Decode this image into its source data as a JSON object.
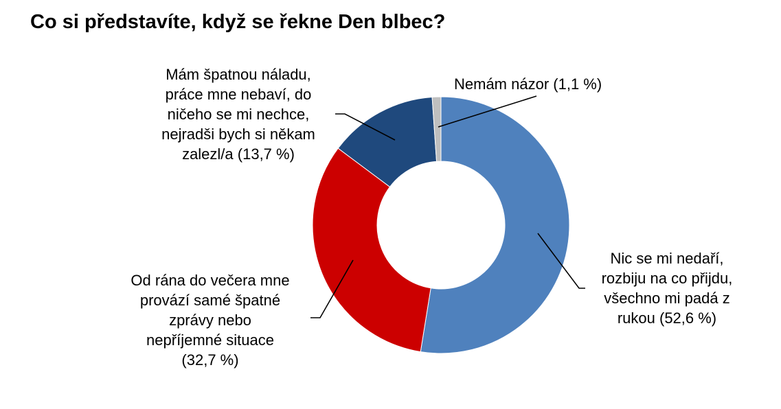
{
  "title": "Co si představíte, když se řekne Den blbec?",
  "chart_data": {
    "type": "pie",
    "variant": "donut",
    "title": "Co si představíte, když se řekne Den blbec?",
    "unit": "%",
    "slices": [
      {
        "label": "Nic se mi nedaří, rozbiju na co přijdu, všechno mi padá z rukou",
        "value": 52.6,
        "value_label": "(52,6 %)",
        "color": "#4f81bd",
        "label_lines": [
          "Nic se mi nedaří,",
          "rozbiju na co přijdu,",
          "všechno mi padá z",
          "rukou (52,6 %)"
        ]
      },
      {
        "label": "Od rána do večera mne provází samé špatné zprávy nebo nepříjemné situace",
        "value": 32.7,
        "value_label": "(32,7 %)",
        "color": "#cc0000",
        "label_lines": [
          "Od rána do večera mne",
          "provází samé špatné",
          "zprávy nebo",
          "nepříjemné situace",
          "(32,7 %)"
        ]
      },
      {
        "label": "Mám špatnou náladu, práce mne nebaví, do ničeho se mi nechce, nejradši bych si někam zalezl/a",
        "value": 13.7,
        "value_label": "(13,7 %)",
        "color": "#1f497d",
        "label_lines": [
          "Mám špatnou náladu,",
          "práce mne nebaví, do",
          "ničeho se mi nechce,",
          "nejradši bych si někam",
          "zalezl/a (13,7 %)"
        ]
      },
      {
        "label": "Nemám názor",
        "value": 1.1,
        "value_label": "(1,1 %)",
        "color": "#bfbfbf",
        "label_lines": [
          "Nemám názor (1,1 %)"
        ]
      }
    ],
    "start_angle_deg": 0,
    "direction": "clockwise",
    "legend": "none",
    "leader_lines": true
  }
}
